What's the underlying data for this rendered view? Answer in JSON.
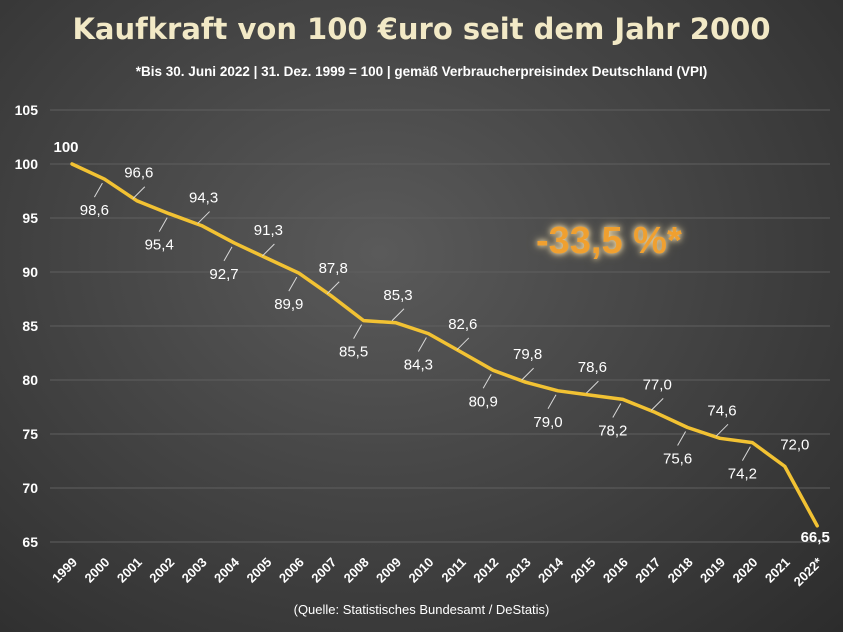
{
  "title": "Kaufkraft von 100 €uro seit dem Jahr 2000",
  "subtitle": "*Bis 30. Juni 2022 | 31. Dez. 1999 = 100 | gemäß Verbraucherpreisindex Deutschland (VPI)",
  "source": "(Quelle: Statistisches Bundesamt / DeStatis)",
  "annotation": "-33,5 %*",
  "colors": {
    "line": "#f2c233",
    "first_label": "#8fc47f",
    "last_label": "#f08a9a",
    "annotation": "#f0a030",
    "grid": "#5f5f5f"
  },
  "chart_data": {
    "type": "line",
    "title": "Kaufkraft von 100 €uro seit dem Jahr 2000",
    "categories": [
      "1999",
      "2000",
      "2001",
      "2002",
      "2003",
      "2004",
      "2005",
      "2006",
      "2007",
      "2008",
      "2009",
      "2010",
      "2011",
      "2012",
      "2013",
      "2014",
      "2015",
      "2016",
      "2017",
      "2018",
      "2019",
      "2020",
      "2021",
      "2022*"
    ],
    "values": [
      100,
      98.6,
      96.6,
      95.4,
      94.3,
      92.7,
      91.3,
      89.9,
      87.8,
      85.5,
      85.3,
      84.3,
      82.6,
      80.9,
      79.8,
      79.0,
      78.6,
      78.2,
      77.0,
      75.6,
      74.6,
      74.2,
      72.0,
      66.5
    ],
    "value_labels": [
      "100",
      "98,6",
      "96,6",
      "95,4",
      "94,3",
      "92,7",
      "91,3",
      "89,9",
      "87,8",
      "85,5",
      "85,3",
      "84,3",
      "82,6",
      "80,9",
      "79,8",
      "79,0",
      "78,6",
      "78,2",
      "77,0",
      "75,6",
      "74,6",
      "74,2",
      "72,0",
      "66,5"
    ],
    "yticks": [
      65,
      70,
      75,
      80,
      85,
      90,
      95,
      100,
      105
    ],
    "ylim": [
      65,
      105
    ],
    "grid": true,
    "legend": "none"
  }
}
